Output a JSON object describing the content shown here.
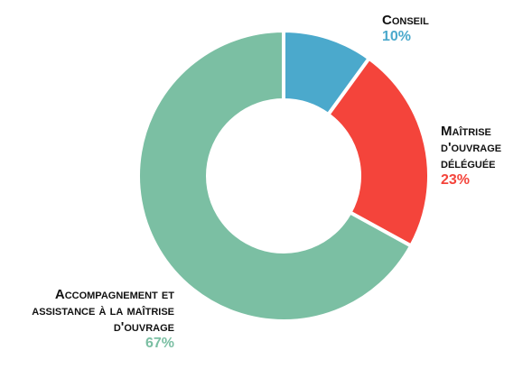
{
  "chart_data": {
    "type": "pie",
    "donut": true,
    "legend": "none",
    "categories": [
      "Conseil",
      "Maîtrise d'ouvrage déléguée",
      "Accompagnement et assistance à la maîtrise d'ouvrage"
    ],
    "values": [
      10,
      23,
      67
    ],
    "value_labels": [
      "10%",
      "23%",
      "67%"
    ],
    "colors": [
      "#4ba9cc",
      "#f4443b",
      "#7bbfa3"
    ]
  }
}
